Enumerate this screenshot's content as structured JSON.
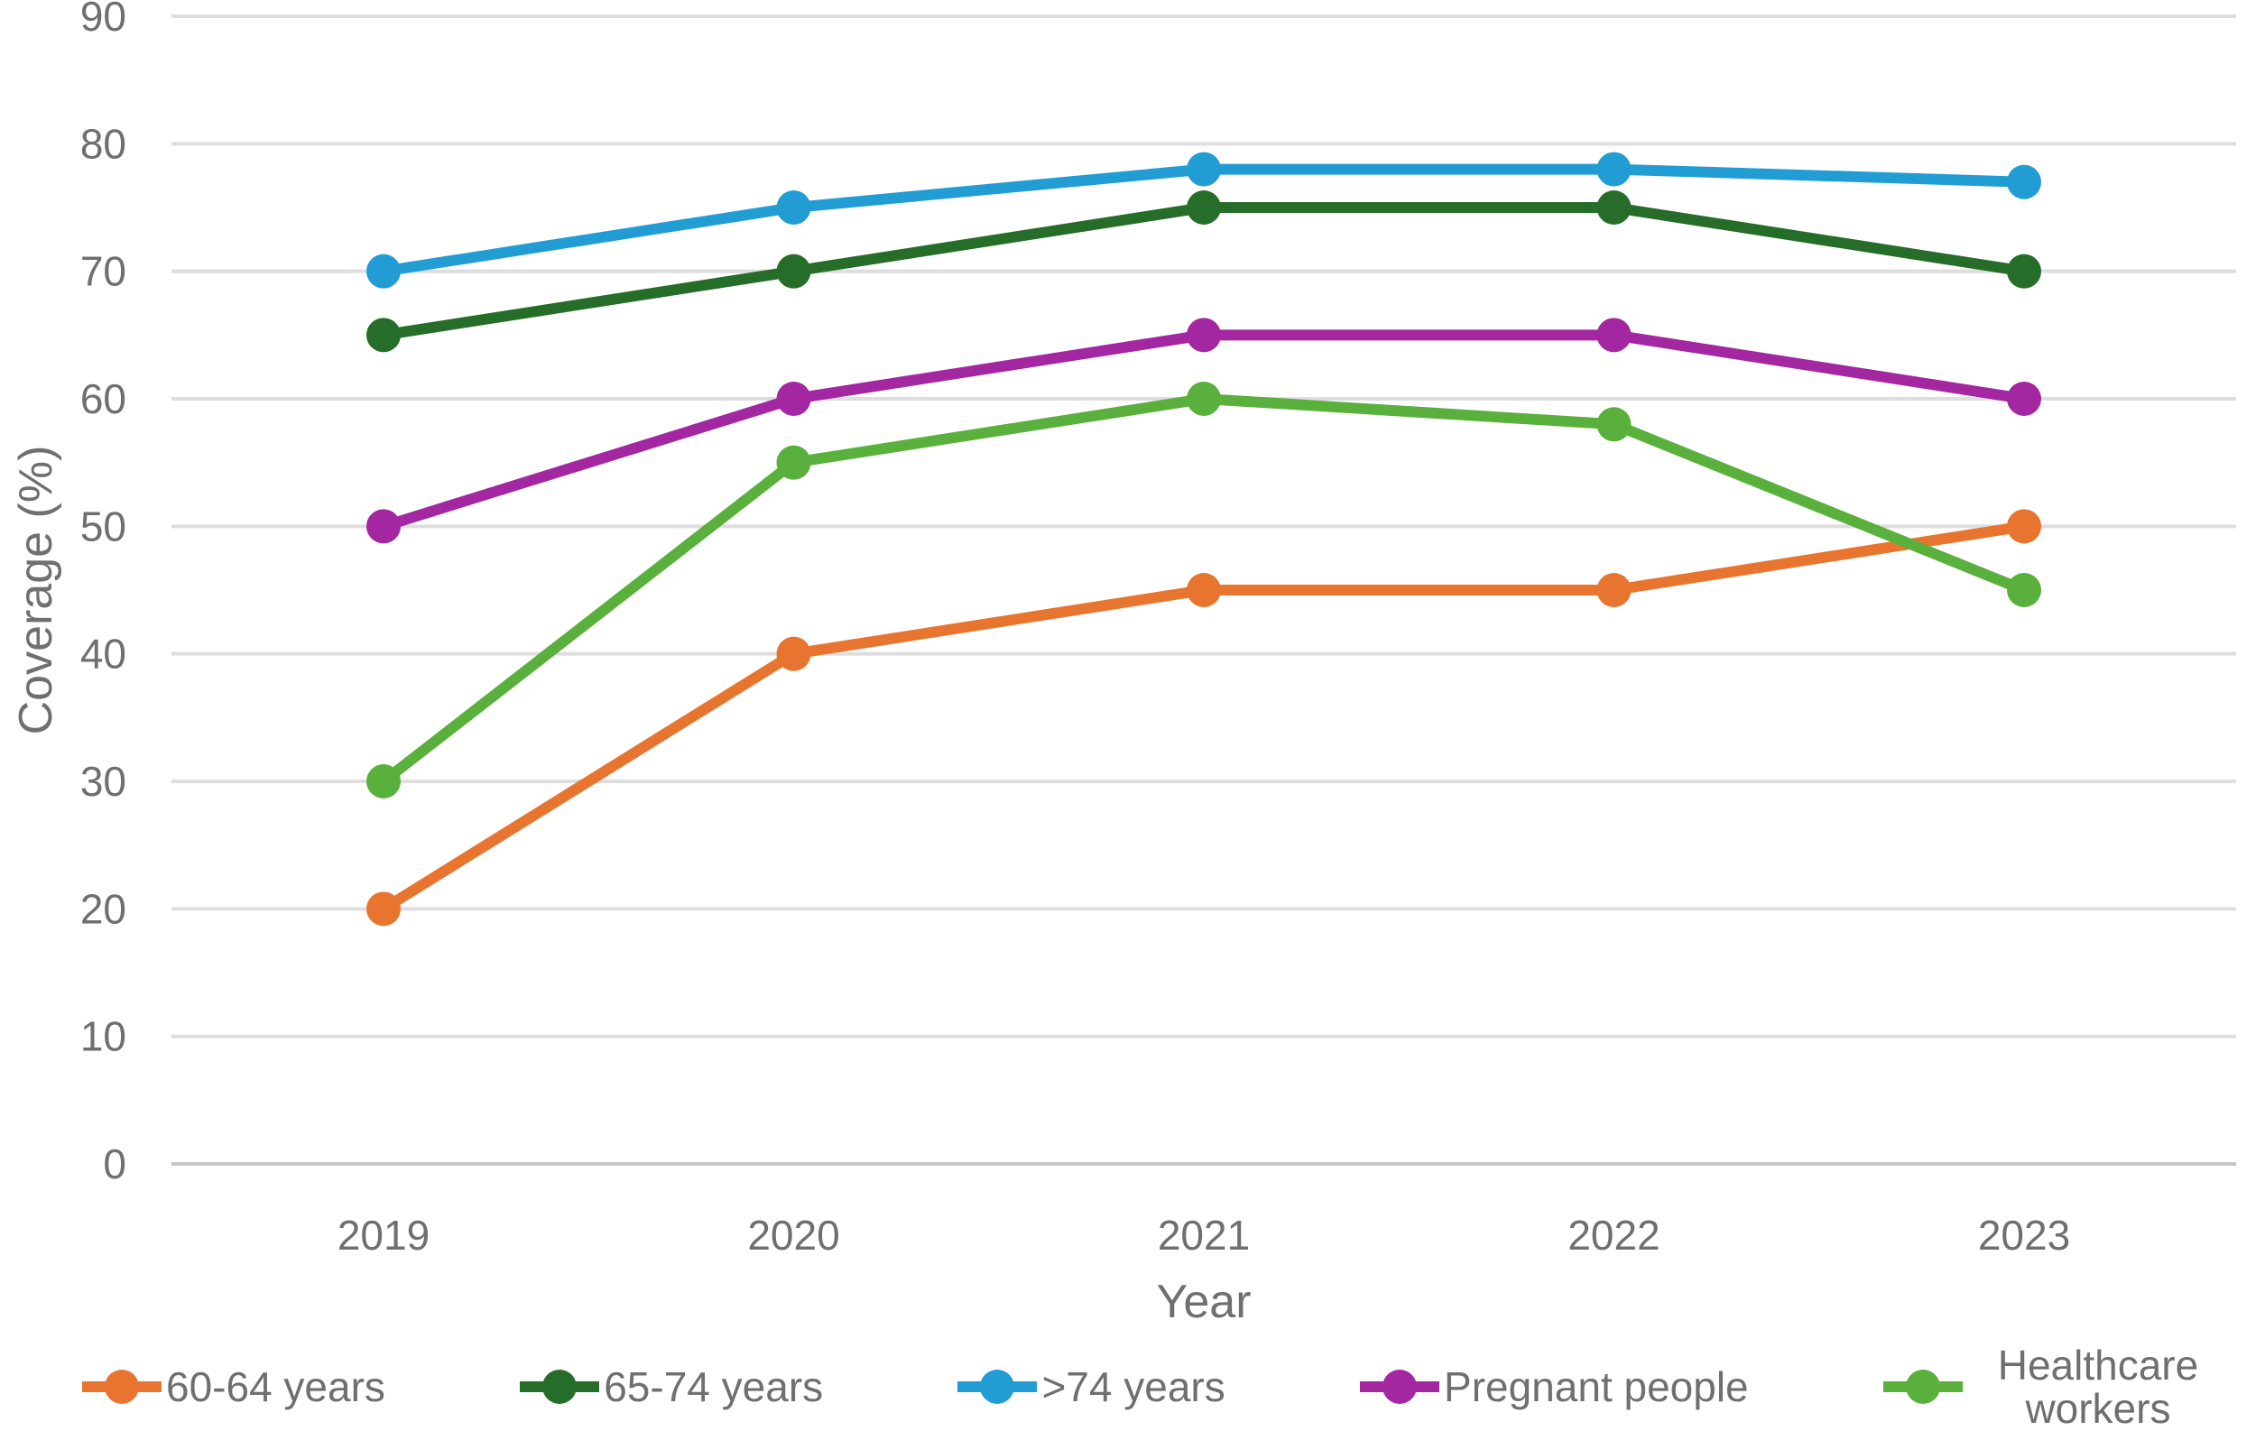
{
  "chart_data": {
    "type": "line",
    "title": "",
    "xlabel": "Year",
    "ylabel": "Coverage (%)",
    "categories": [
      "2019",
      "2020",
      "2021",
      "2022",
      "2023"
    ],
    "ylim": [
      0,
      90
    ],
    "ytick_step": 10,
    "grid": "horizontal",
    "legend_position": "bottom",
    "series": [
      {
        "name": "60-64 years",
        "color": "#E8752F",
        "values": [
          20,
          40,
          45,
          45,
          50
        ]
      },
      {
        "name": "65-74 years",
        "color": "#256D28",
        "values": [
          65,
          70,
          75,
          75,
          70
        ]
      },
      {
        "name": ">74 years",
        "color": "#229DD4",
        "values": [
          70,
          75,
          78,
          78,
          77
        ]
      },
      {
        "name": "Pregnant people",
        "color": "#A227A0",
        "values": [
          50,
          60,
          65,
          65,
          60
        ]
      },
      {
        "name": "Healthcare workers",
        "color": "#5AB03C",
        "values": [
          30,
          55,
          60,
          58,
          45
        ]
      }
    ],
    "styles": {
      "grid_color": "#dedede",
      "baseline_color": "#c6c6c6",
      "axis_text_color": "#6f6f6f"
    }
  }
}
